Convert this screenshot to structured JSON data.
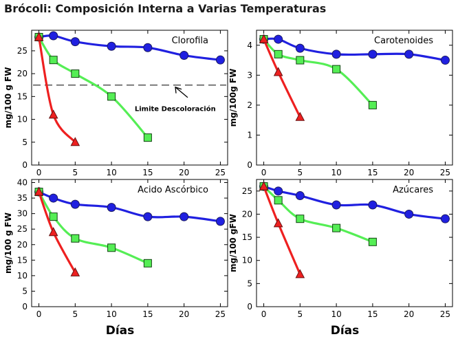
{
  "title": "Brócoli: Composición Interna a Varias Temperaturas",
  "colors": {
    "blue": "#2020e0",
    "green": "#55ee55",
    "red": "#ee2020",
    "grid": "#000000"
  },
  "chart_data": [
    {
      "type": "line",
      "title": "Clorofila",
      "ylabel": "mg/100 g FW",
      "xlabel": "",
      "xlim": [
        -1,
        26
      ],
      "ylim": [
        0,
        29.5
      ],
      "xticks": [
        0,
        5,
        10,
        15,
        20,
        25
      ],
      "yticks": [
        0,
        5,
        10,
        15,
        20,
        25
      ],
      "series": [
        {
          "color": "blue",
          "marker": "circle",
          "x": [
            0,
            2,
            5,
            10,
            15,
            20,
            25
          ],
          "y": [
            28,
            28.3,
            27,
            26,
            25.7,
            24,
            23
          ]
        },
        {
          "color": "green",
          "marker": "square",
          "x": [
            0,
            2,
            5,
            10,
            15
          ],
          "y": [
            28,
            23,
            20,
            15,
            6
          ]
        },
        {
          "color": "red",
          "marker": "triangle",
          "x": [
            0,
            2,
            5
          ],
          "y": [
            28,
            11,
            5
          ]
        }
      ],
      "reference_line": {
        "y": 17.5,
        "label": "Limite Descoloración"
      }
    },
    {
      "type": "line",
      "title": "Carotenoides",
      "ylabel": "mg/100g FW",
      "xlabel": "",
      "xlim": [
        -1,
        26
      ],
      "ylim": [
        0,
        4.5
      ],
      "xticks": [
        0,
        5,
        10,
        15,
        20,
        25
      ],
      "yticks": [
        0,
        1,
        2,
        3,
        4
      ],
      "series": [
        {
          "color": "blue",
          "marker": "circle",
          "x": [
            0,
            2,
            5,
            10,
            15,
            20,
            25
          ],
          "y": [
            4.2,
            4.2,
            3.9,
            3.7,
            3.7,
            3.7,
            3.5
          ]
        },
        {
          "color": "green",
          "marker": "square",
          "x": [
            0,
            2,
            5,
            10,
            15
          ],
          "y": [
            4.2,
            3.7,
            3.5,
            3.2,
            2.0
          ]
        },
        {
          "color": "red",
          "marker": "triangle",
          "x": [
            0,
            2,
            5
          ],
          "y": [
            4.2,
            3.1,
            1.6
          ]
        }
      ]
    },
    {
      "type": "line",
      "title": "Acido Ascórbico",
      "ylabel": "mg/100 g FW",
      "xlabel": "Días",
      "xlim": [
        -1,
        26
      ],
      "ylim": [
        0,
        41
      ],
      "xticks": [
        0,
        5,
        10,
        15,
        20,
        25
      ],
      "yticks": [
        0,
        5,
        10,
        15,
        20,
        25,
        30,
        35,
        40
      ],
      "series": [
        {
          "color": "blue",
          "marker": "circle",
          "x": [
            0,
            2,
            5,
            10,
            15,
            20,
            25
          ],
          "y": [
            37,
            35,
            33,
            32,
            29,
            29,
            27.5
          ]
        },
        {
          "color": "green",
          "marker": "square",
          "x": [
            0,
            2,
            5,
            10,
            15
          ],
          "y": [
            37,
            29,
            22,
            19,
            14
          ]
        },
        {
          "color": "red",
          "marker": "triangle",
          "x": [
            0,
            2,
            5
          ],
          "y": [
            37,
            24,
            11
          ]
        }
      ]
    },
    {
      "type": "line",
      "title": "Azúcares",
      "ylabel": "mg/100 gFW",
      "xlabel": "Días",
      "xlim": [
        -1,
        26
      ],
      "ylim": [
        0,
        27.5
      ],
      "xticks": [
        0,
        5,
        10,
        15,
        20,
        25
      ],
      "yticks": [
        0,
        5,
        10,
        15,
        20,
        25
      ],
      "series": [
        {
          "color": "blue",
          "marker": "circle",
          "x": [
            0,
            2,
            5,
            10,
            15,
            20,
            25
          ],
          "y": [
            26,
            25,
            24,
            22,
            22,
            20,
            19
          ]
        },
        {
          "color": "green",
          "marker": "square",
          "x": [
            0,
            2,
            5,
            10,
            15
          ],
          "y": [
            26,
            23,
            19,
            17,
            14
          ]
        },
        {
          "color": "red",
          "marker": "triangle",
          "x": [
            0,
            2,
            5
          ],
          "y": [
            26,
            18,
            7
          ]
        }
      ]
    }
  ]
}
